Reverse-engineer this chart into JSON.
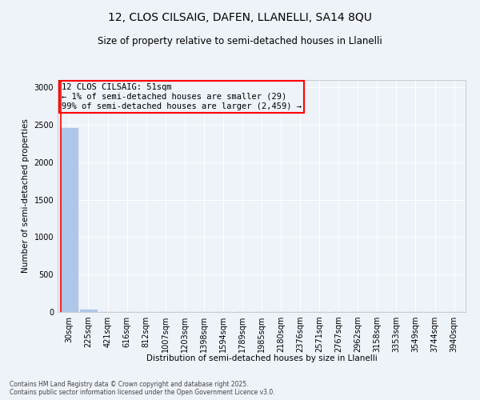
{
  "title_line1": "12, CLOS CILSAIG, DAFEN, LLANELLI, SA14 8QU",
  "title_line2": "Size of property relative to semi-detached houses in Llanelli",
  "xlabel": "Distribution of semi-detached houses by size in Llanelli",
  "ylabel": "Number of semi-detached properties",
  "categories": [
    "30sqm",
    "225sqm",
    "421sqm",
    "616sqm",
    "812sqm",
    "1007sqm",
    "1203sqm",
    "1398sqm",
    "1594sqm",
    "1789sqm",
    "1985sqm",
    "2180sqm",
    "2376sqm",
    "2571sqm",
    "2767sqm",
    "2962sqm",
    "3158sqm",
    "3353sqm",
    "3549sqm",
    "3744sqm",
    "3940sqm"
  ],
  "values": [
    2459,
    29,
    0,
    0,
    0,
    0,
    0,
    0,
    0,
    0,
    0,
    0,
    0,
    0,
    0,
    0,
    0,
    0,
    0,
    0,
    0
  ],
  "bar_color": "#aec6e8",
  "annotation_text": "12 CLOS CILSAIG: 51sqm\n← 1% of semi-detached houses are smaller (29)\n99% of semi-detached houses are larger (2,459) →",
  "ylim": [
    0,
    3100
  ],
  "yticks": [
    0,
    500,
    1000,
    1500,
    2000,
    2500,
    3000
  ],
  "background_color": "#eef2f9",
  "grid_color": "#ffffff",
  "spine_color": "#bbbbbb",
  "footer_line1": "Contains HM Land Registry data © Crown copyright and database right 2025.",
  "footer_line2": "Contains public sector information licensed under the Open Government Licence v3.0."
}
